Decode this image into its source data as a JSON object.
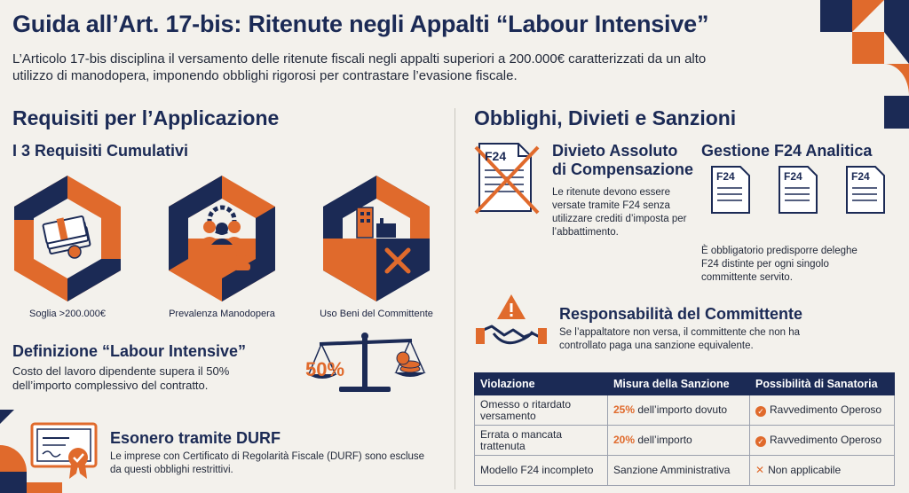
{
  "header": {
    "title": "Guida all’Art. 17-bis: Ritenute negli Appalti “Labour Intensive”",
    "intro": "L’Articolo 17-bis disciplina il versamento delle ritenute fiscali negli appalti superiori a 200.000€ caratterizzati da un alto utilizzo di manodopera, imponendo obblighi rigorosi per contrastare l’evasione fiscale."
  },
  "left": {
    "heading": "Requisiti per l’Applicazione",
    "subheading": "I 3 Requisiti Cumulativi",
    "requirements": [
      {
        "label": "Soglia >200.000€",
        "icon": "money-stack-icon"
      },
      {
        "label": "Prevalenza Manodopera",
        "icon": "workers-gear-icon"
      },
      {
        "label": "Uso Beni del Committente",
        "icon": "building-tools-icon"
      }
    ],
    "definition": {
      "title": "Definizione “Labour Intensive”",
      "text": "Costo del lavoro dipendente supera il 50% dell’importo complessivo del contratto.",
      "scale_label": "50%"
    },
    "durf": {
      "title": "Esonero tramite DURF",
      "text": "Le imprese con Certificato di Regolarità Fiscale (DURF) sono escluse da questi obblighi restrittivi."
    }
  },
  "right": {
    "heading": "Obblighi, Divieti e Sanzioni",
    "divieto": {
      "title_line1": "Divieto Assoluto",
      "title_line2": "di Compensazione",
      "doc_label": "F24",
      "text": "Le ritenute devono essere versate tramite F24 senza utilizzare crediti d’imposta per l’abbattimento."
    },
    "gestione": {
      "title": "Gestione F24 Analitica",
      "doc_labels": [
        "F24",
        "F24",
        "F24"
      ],
      "text": "È obbligatorio predisporre deleghe F24 distinte per ogni singolo committente servito."
    },
    "responsabilita": {
      "title": "Responsabilità del Committente",
      "text": "Se l’appaltatore non versa, il committente che non ha controllato paga una sanzione equivalente."
    },
    "table": {
      "headers": [
        "Violazione",
        "Misura della Sanzione",
        "Possibilità di Sanatoria"
      ],
      "rows": [
        {
          "violazione": "Omesso o ritardato versamento",
          "pct": "25%",
          "misura": " dell’importo dovuto",
          "sanatoria": "Ravvedimento Operoso",
          "ok": true
        },
        {
          "violazione": "Errata o mancata trattenuta",
          "pct": "20%",
          "misura": " dell’importo",
          "sanatoria": "Ravvedimento Operoso",
          "ok": true
        },
        {
          "violazione": "Modello F24 incompleto",
          "pct": "",
          "misura": "Sanzione Amministrativa",
          "sanatoria": "Non applicabile",
          "ok": false
        }
      ]
    }
  },
  "colors": {
    "navy": "#1b2a55",
    "orange": "#e06a2c",
    "background": "#f3f1ec"
  }
}
